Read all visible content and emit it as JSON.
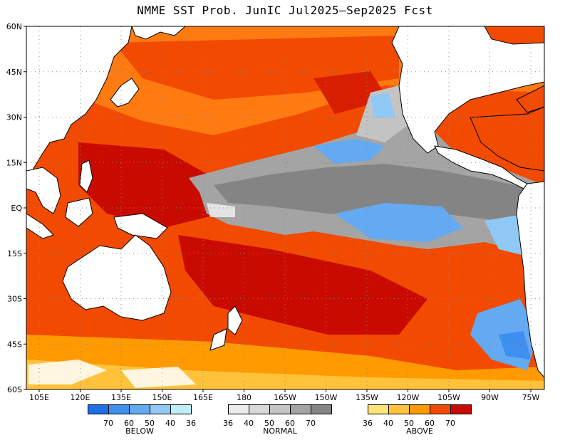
{
  "title": "NMME SST Prob. JunIC  Jul2025–Sep2025 Fcst",
  "axes": {
    "y_labels": [
      "60N",
      "45N",
      "30N",
      "15N",
      "EQ",
      "15S",
      "30S",
      "45S",
      "60S"
    ],
    "x_labels": [
      "105E",
      "120E",
      "135E",
      "150E",
      "165E",
      "180",
      "165W",
      "150W",
      "135W",
      "120W",
      "105W",
      "90W",
      "75W"
    ]
  },
  "legend": {
    "below": {
      "caption": "BELOW",
      "colors": [
        "#1f6fe8",
        "#3f8ff0",
        "#63aaf2",
        "#90c8f6",
        "#bfeff6"
      ],
      "ticks": [
        "70",
        "60",
        "50",
        "40",
        "36"
      ]
    },
    "normal": {
      "caption": "NORMAL",
      "colors": [
        "#ececec",
        "#d8d8d8",
        "#c4c4c4",
        "#a4a4a4",
        "#848484"
      ],
      "ticks": [
        "36",
        "40",
        "50",
        "60",
        "70"
      ]
    },
    "above": {
      "caption": "ABOVE",
      "colors": [
        "#ffe47a",
        "#ffc23a",
        "#ff9a00",
        "#f24a00",
        "#c80a00"
      ],
      "ticks": [
        "36",
        "40",
        "50",
        "60",
        "70"
      ]
    }
  },
  "colors": {
    "land": "#ffffff",
    "ocean_above_dark": "#d81e00",
    "ocean_above": "#f24a00",
    "ocean_above_light": "#ff9a00",
    "normal_gray": "#a4a4a4",
    "below_blue": "#63aaf2"
  }
}
